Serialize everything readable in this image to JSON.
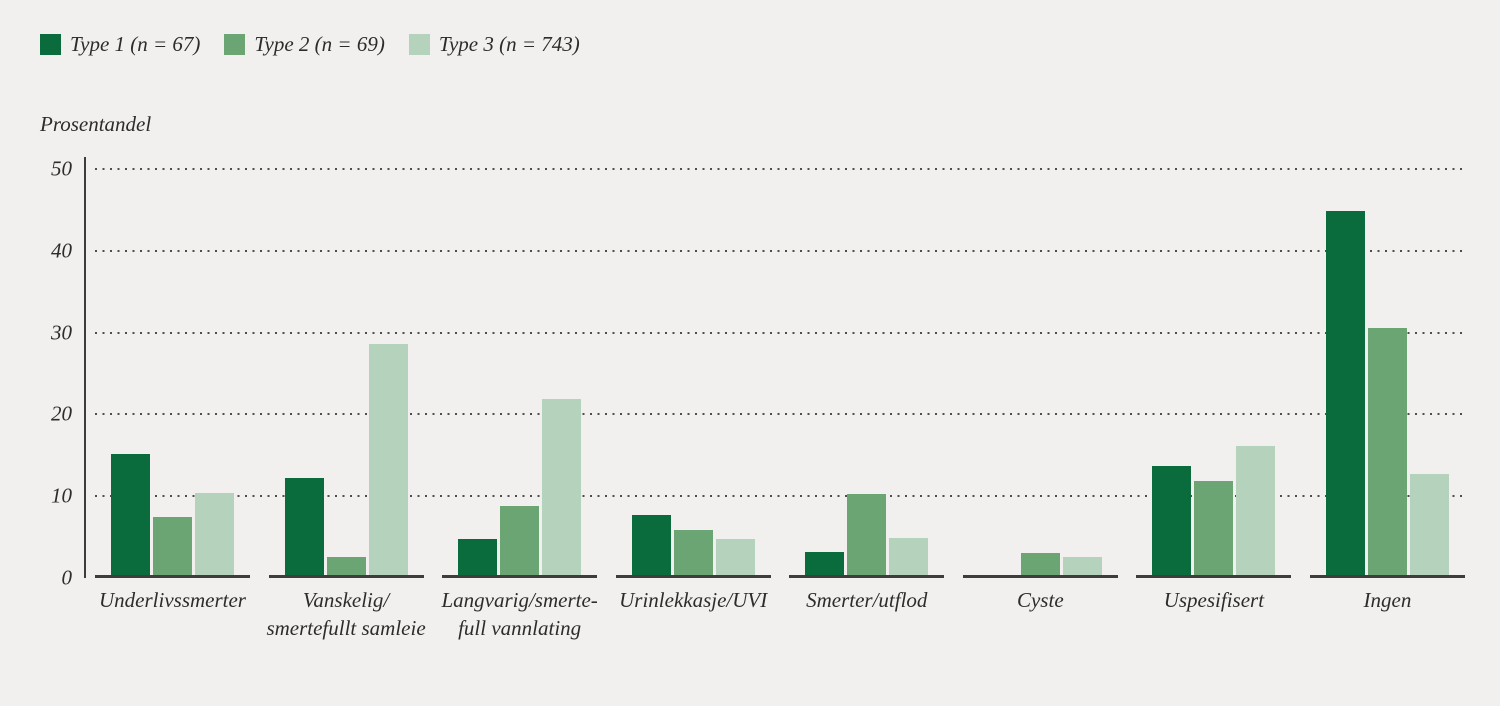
{
  "page": {
    "background": "#f1f0ee",
    "text_color": "#2d2c2b",
    "axis_color": "#3c3c3c",
    "gridline_color": "#4d4d4d"
  },
  "chart_data": {
    "type": "bar",
    "title": "",
    "xlabel": "",
    "ylabel": "Prosentandel",
    "ylim": [
      0,
      50
    ],
    "yticks": [
      0,
      10,
      20,
      30,
      40,
      50
    ],
    "grid": "horizontal-dotted",
    "legend_position": "top-left",
    "categories": [
      "Underlivssmerter",
      "Vanskelig/\nsmertefullt samleie",
      "Langvarig/smerte-\nfull vannlating",
      "Urinlekkasje/UVI",
      "Smerter/utflod",
      "Cyste",
      "Uspesifisert",
      "Ingen"
    ],
    "series": [
      {
        "name": "Type 1 (n = 67)",
        "color": "#0a6b3d",
        "values": [
          14.9,
          11.9,
          4.4,
          7.4,
          2.8,
          0,
          13.4,
          44.8
        ]
      },
      {
        "name": "Type 2 (n = 69)",
        "color": "#6ba573",
        "values": [
          7.2,
          2.2,
          8.5,
          5.6,
          10.0,
          2.7,
          11.6,
          30.4
        ]
      },
      {
        "name": "Type 3 (n = 743)",
        "color": "#b5d2bc",
        "values": [
          10.1,
          28.4,
          21.7,
          4.4,
          4.5,
          2.2,
          15.9,
          12.4
        ]
      }
    ]
  }
}
